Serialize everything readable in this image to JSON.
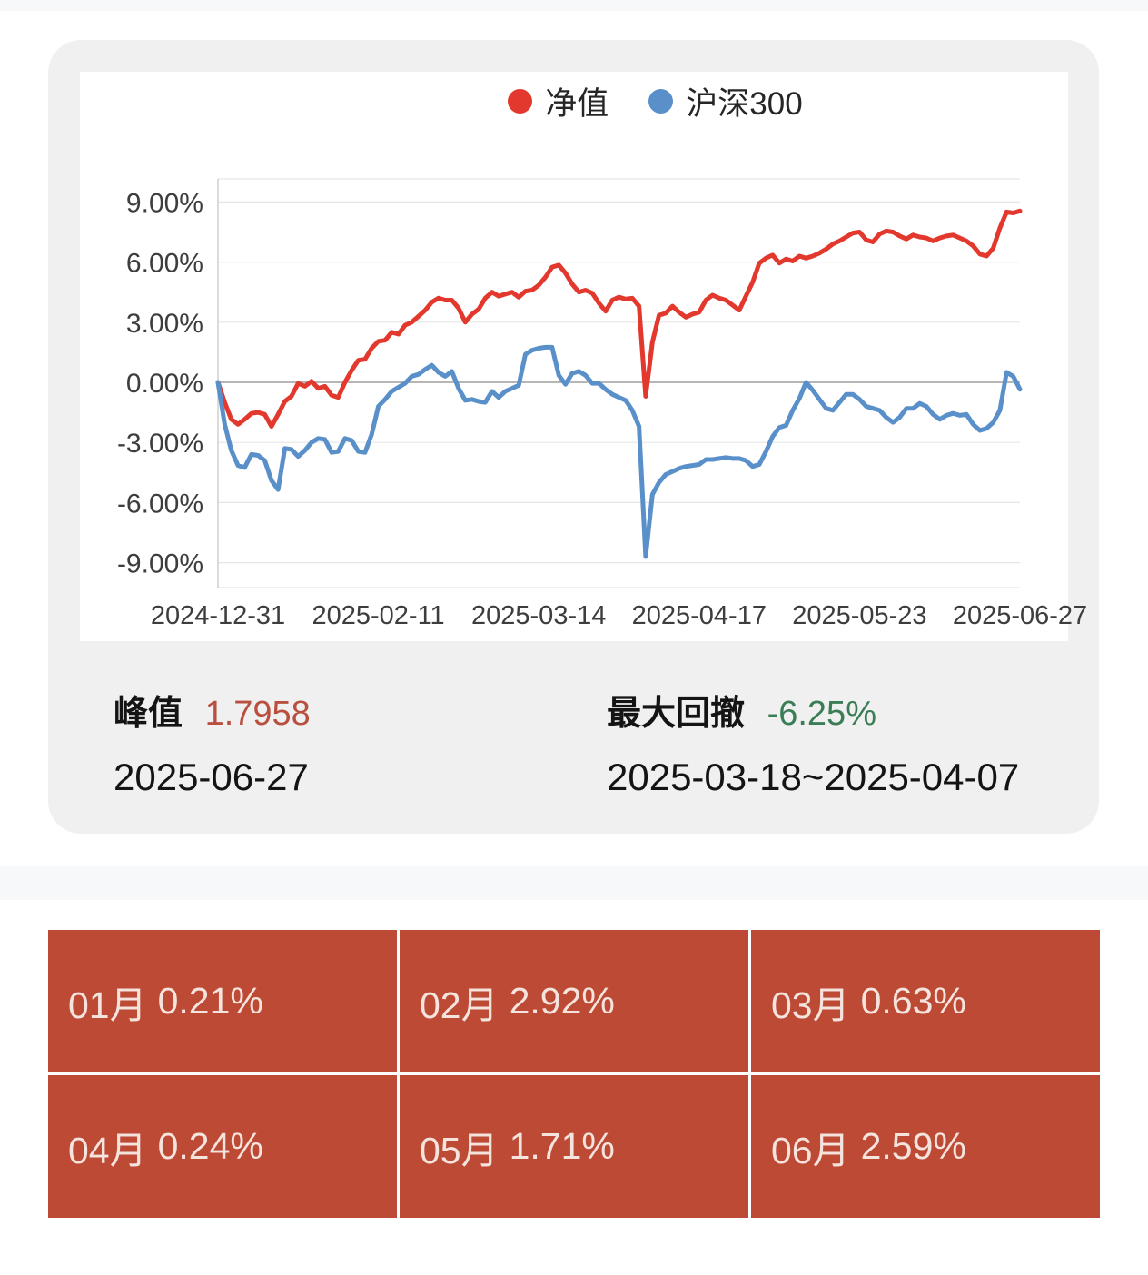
{
  "chart_card": {
    "stats": {
      "peak_label": "峰值",
      "peak_value": "1.7958",
      "peak_value_color": "#b9503f",
      "peak_date": "2025-06-27",
      "drawdown_label": "最大回撤",
      "drawdown_value": "-6.25%",
      "drawdown_value_color": "#3a7d56",
      "drawdown_range": "2025-03-18~2025-04-07"
    }
  },
  "chart_data": {
    "type": "line",
    "title": "",
    "xlabel": "",
    "ylabel": "",
    "unit": "percent",
    "grid": true,
    "legend_position": "top",
    "ylim": [
      -10.2,
      10.2
    ],
    "grid_color": "#e6e6e6",
    "zero_line_color": "#9e9e9e",
    "axis_line_color": "#cfcfcf",
    "tick_label_color": "#3d3d3d",
    "x_tick_labels": [
      "2024-12-31",
      "2025-02-11",
      "2025-03-14",
      "2025-04-17",
      "2025-05-23",
      "2025-06-27"
    ],
    "y_ticks": [
      {
        "value": 9,
        "label": "9.00%"
      },
      {
        "value": 6,
        "label": "6.00%"
      },
      {
        "value": 3,
        "label": "3.00%"
      },
      {
        "value": 0,
        "label": "0.00%"
      },
      {
        "value": -3,
        "label": "-3.00%"
      },
      {
        "value": -6,
        "label": "-6.00%"
      },
      {
        "value": -9,
        "label": "-9.00%"
      }
    ],
    "series": [
      {
        "name": "净值",
        "color": "#e2382d",
        "values": [
          0,
          -1.0,
          -1.85,
          -2.1,
          -1.85,
          -1.55,
          -1.5,
          -1.6,
          -2.2,
          -1.6,
          -0.95,
          -0.7,
          -0.05,
          -0.2,
          0.05,
          -0.3,
          -0.2,
          -0.65,
          -0.75,
          0.0,
          0.6,
          1.1,
          1.15,
          1.7,
          2.05,
          2.1,
          2.5,
          2.4,
          2.85,
          3.0,
          3.3,
          3.6,
          4.0,
          4.2,
          4.1,
          4.1,
          3.7,
          3.0,
          3.4,
          3.65,
          4.2,
          4.5,
          4.3,
          4.4,
          4.5,
          4.25,
          4.55,
          4.6,
          4.85,
          5.25,
          5.75,
          5.85,
          5.45,
          4.9,
          4.5,
          4.6,
          4.45,
          3.95,
          3.55,
          4.1,
          4.25,
          4.15,
          4.2,
          3.8,
          -0.7,
          2.0,
          3.35,
          3.45,
          3.8,
          3.5,
          3.25,
          3.4,
          3.5,
          4.1,
          4.35,
          4.2,
          4.1,
          3.85,
          3.6,
          4.3,
          5.0,
          5.95,
          6.2,
          6.35,
          5.95,
          6.15,
          6.05,
          6.3,
          6.2,
          6.3,
          6.45,
          6.65,
          6.9,
          7.05,
          7.25,
          7.45,
          7.5,
          7.1,
          7.0,
          7.4,
          7.55,
          7.5,
          7.3,
          7.15,
          7.35,
          7.25,
          7.2,
          7.05,
          7.2,
          7.3,
          7.35,
          7.2,
          7.05,
          6.8,
          6.4,
          6.3,
          6.7,
          7.7,
          8.5,
          8.45,
          8.55
        ]
      },
      {
        "name": "沪深300",
        "color": "#5a90c9",
        "values": [
          0,
          -2.1,
          -3.4,
          -4.15,
          -4.25,
          -3.6,
          -3.65,
          -3.9,
          -4.9,
          -5.35,
          -3.3,
          -3.35,
          -3.7,
          -3.4,
          -3.0,
          -2.8,
          -2.85,
          -3.5,
          -3.45,
          -2.8,
          -2.9,
          -3.45,
          -3.5,
          -2.6,
          -1.2,
          -0.85,
          -0.45,
          -0.25,
          -0.05,
          0.3,
          0.4,
          0.65,
          0.85,
          0.5,
          0.3,
          0.55,
          -0.3,
          -0.9,
          -0.85,
          -0.95,
          -1.0,
          -0.45,
          -0.75,
          -0.45,
          -0.3,
          -0.15,
          1.4,
          1.6,
          1.7,
          1.75,
          1.75,
          0.35,
          -0.1,
          0.45,
          0.55,
          0.35,
          -0.05,
          -0.05,
          -0.35,
          -0.6,
          -0.75,
          -0.9,
          -1.4,
          -2.2,
          -8.7,
          -5.6,
          -5.0,
          -4.6,
          -4.45,
          -4.3,
          -4.2,
          -4.15,
          -4.1,
          -3.85,
          -3.85,
          -3.8,
          -3.75,
          -3.8,
          -3.8,
          -3.9,
          -4.2,
          -4.1,
          -3.45,
          -2.7,
          -2.25,
          -2.15,
          -1.4,
          -0.8,
          0.0,
          -0.4,
          -0.85,
          -1.3,
          -1.4,
          -1.0,
          -0.6,
          -0.6,
          -0.85,
          -1.2,
          -1.3,
          -1.4,
          -1.75,
          -2.0,
          -1.75,
          -1.3,
          -1.3,
          -1.05,
          -1.2,
          -1.6,
          -1.85,
          -1.65,
          -1.55,
          -1.65,
          -1.6,
          -2.1,
          -2.4,
          -2.3,
          -2.0,
          -1.4,
          0.5,
          0.3,
          -0.35
        ]
      }
    ]
  },
  "monthly_table": {
    "cell_bg": "#bc4a34",
    "cells": [
      {
        "month": "01月",
        "value": "0.21%"
      },
      {
        "month": "02月",
        "value": "2.92%"
      },
      {
        "month": "03月",
        "value": "0.63%"
      },
      {
        "month": "04月",
        "value": "0.24%"
      },
      {
        "month": "05月",
        "value": "1.71%"
      },
      {
        "month": "06月",
        "value": "2.59%"
      }
    ]
  }
}
